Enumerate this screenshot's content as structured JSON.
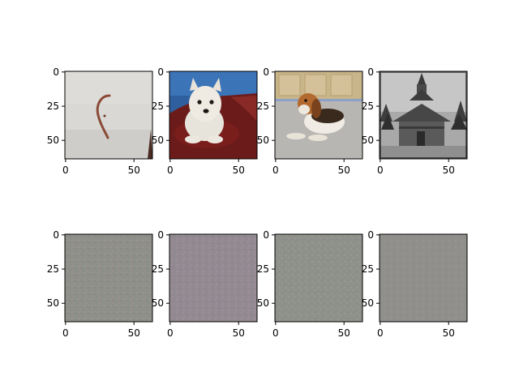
{
  "figure": {
    "rows": [
      {
        "name": "input-images",
        "panels": [
          {
            "subject": "worm on snow",
            "icon": "worm-photo"
          },
          {
            "subject": "white terrier on red cushion",
            "icon": "terrier-photo"
          },
          {
            "subject": "beagle lying on floor",
            "icon": "beagle-photo"
          },
          {
            "subject": "wooden church in black and white",
            "icon": "church-photo"
          }
        ]
      },
      {
        "name": "generated-noise-images",
        "panels": [
          {
            "subject": "grey noise pattern",
            "icon": "noise-image"
          },
          {
            "subject": "grey-pink noise pattern",
            "icon": "noise-image"
          },
          {
            "subject": "grey-green noise pattern",
            "icon": "noise-image"
          },
          {
            "subject": "grey noise pattern",
            "icon": "noise-image"
          }
        ]
      }
    ],
    "x_ticks": [
      "0",
      "50"
    ],
    "y_ticks": [
      "0",
      "25",
      "50"
    ],
    "image_extent": [
      0,
      64
    ]
  }
}
